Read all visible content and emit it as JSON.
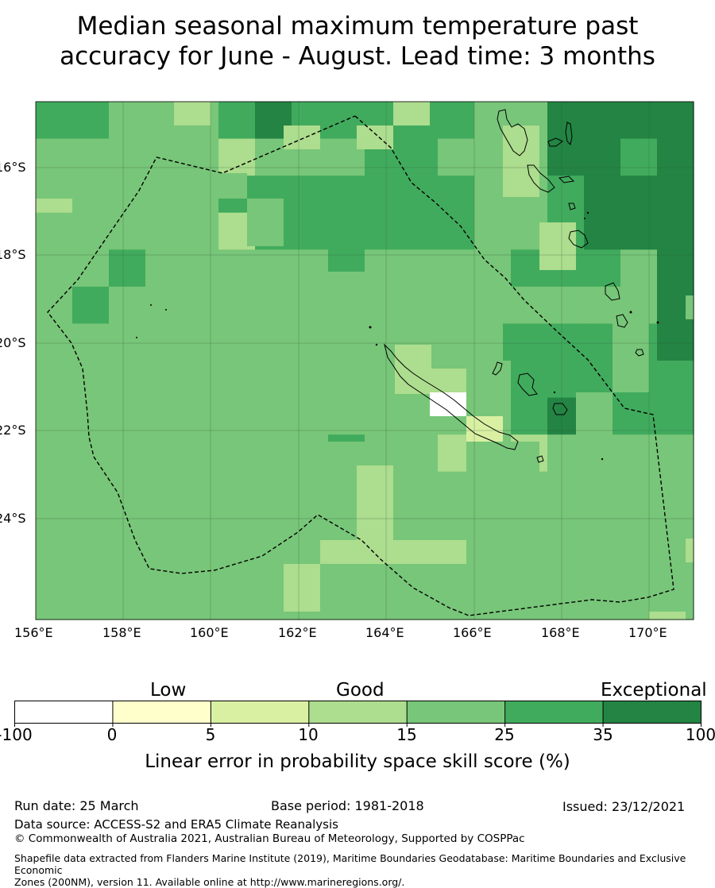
{
  "title_line1": "Median seasonal maximum temperature past",
  "title_line2": "accuracy for June - August. Lead time: 3 months",
  "map": {
    "lat_ticks": [
      "16°S",
      "18°S",
      "20°S",
      "22°S",
      "24°S"
    ],
    "lon_ticks": [
      "156°E",
      "158°E",
      "160°E",
      "162°E",
      "164°E",
      "166°E",
      "168°E",
      "170°E"
    ],
    "grid": true,
    "boundary_style": "dashed"
  },
  "colorbar": {
    "categories": [
      "Low",
      "Good",
      "Exceptional"
    ],
    "ticks": [
      "-100",
      "0",
      "5",
      "10",
      "15",
      "25",
      "35",
      "100"
    ],
    "colors": [
      "#ffffff",
      "#ffffcc",
      "#d9f0a3",
      "#addd8e",
      "#78c679",
      "#41ab5d",
      "#238443"
    ],
    "label": "Linear error in probability space skill score (%)"
  },
  "footer": {
    "run_date": "Run date: 25 March",
    "base_period": "Base period: 1981-2018",
    "issued": "Issued: 23/12/2021",
    "data_source": "Data source: ACCESS-S2 and ERA5 Climate Reanalysis",
    "copyright": "© Commonwealth of Australia 2021, Australian Bureau of Meteorology, Supported by COSPPac",
    "shapefile_line1": "Shapefile data extracted from Flanders Marine Institute (2019), Maritime Boundaries Geodatabase: Maritime Boundaries and Exclusive Economic",
    "shapefile_line2": "Zones (200NM), version 11. Available online at http://www.marineregions.org/."
  }
}
